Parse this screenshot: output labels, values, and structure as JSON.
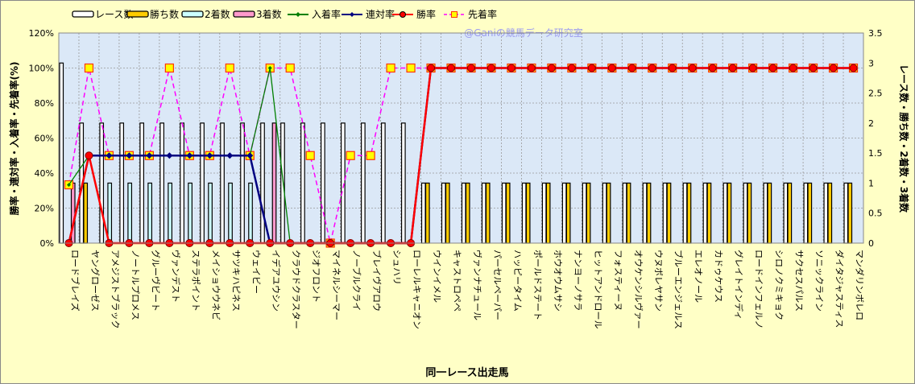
{
  "chart_data": {
    "type": "bar+line",
    "watermark": "@Ganiの競馬データ研究室",
    "xlabel": "同一レース出走馬",
    "ylabel_left": "勝率・連対率・入着率・先着率(%)",
    "ylabel_right": "レース数・勝ち数・2着数・3着数",
    "ylim_left": [
      0,
      120
    ],
    "ylim_right": [
      0,
      3.5
    ],
    "yticks_left": [
      "0%",
      "20%",
      "40%",
      "60%",
      "80%",
      "100%",
      "120%"
    ],
    "yticks_right": [
      "0",
      "0.5",
      "1",
      "1.5",
      "2",
      "2.5",
      "3",
      "3.5"
    ],
    "grid": true,
    "legend_position": "top",
    "categories": [
      "ロードブレイズ",
      "ヤングローゼス",
      "アメジストブラック",
      "ノートルプロメス",
      "グルーヴビート",
      "ヴァンデスト",
      "ステラポイント",
      "メイショウウネビ",
      "サツキハピネス",
      "ウェイビー",
      "イデアユウシン",
      "クラウドクラスター",
      "ジオフロント",
      "マイネルシーマー",
      "ノーブルクライ",
      "ブレイヴアロウ",
      "シュハリ",
      "ローレルキャニオン",
      "ウインイメル",
      "キャストロペペ",
      "ヴァンナチュール",
      "パーセルペーパー",
      "ハッピータイム",
      "ポールドステート",
      "ホウオウムサシ",
      "ナンヨーノサラ",
      "ヒットアンドロール",
      "フォスティーヌ",
      "オウケンシルヴァー",
      "ウヌボレヤサン",
      "ブルーエンジェルス",
      "エレオノール",
      "カドゥケウス",
      "グレイトインディ",
      "ロードインフェルノ",
      "シロノクミキョク",
      "サクセスパルス",
      "ソニックライン",
      "ダイタジャスティス",
      "マンダリンボレロ"
    ],
    "bar_series": [
      {
        "name": "レース数",
        "color": "#ffffff",
        "values": [
          3,
          2,
          2,
          2,
          2,
          2,
          2,
          2,
          2,
          2,
          2,
          2,
          2,
          2,
          2,
          2,
          2,
          2,
          1,
          1,
          1,
          1,
          1,
          1,
          1,
          1,
          1,
          1,
          1,
          1,
          1,
          1,
          1,
          1,
          1,
          1,
          1,
          1,
          1,
          1
        ]
      },
      {
        "name": "勝ち数",
        "color": "#ffcc00",
        "values": [
          0,
          1,
          0,
          0,
          0,
          0,
          0,
          0,
          0,
          0,
          0,
          0,
          0,
          0,
          0,
          0,
          0,
          0,
          1,
          1,
          1,
          1,
          1,
          1,
          1,
          1,
          1,
          1,
          1,
          1,
          1,
          1,
          1,
          1,
          1,
          1,
          1,
          1,
          1,
          1
        ]
      },
      {
        "name": "2着数",
        "color": "#ccffff",
        "values": [
          0,
          0,
          1,
          1,
          1,
          1,
          1,
          1,
          1,
          1,
          0,
          0,
          0,
          0,
          0,
          0,
          0,
          0,
          0,
          0,
          0,
          0,
          0,
          0,
          0,
          0,
          0,
          0,
          0,
          0,
          0,
          0,
          0,
          0,
          0,
          0,
          0,
          0,
          0,
          0
        ]
      },
      {
        "name": "3着数",
        "color": "#ff99cc",
        "values": [
          1,
          0,
          0,
          0,
          0,
          0,
          0,
          0,
          0,
          0,
          2,
          0,
          0,
          0,
          0,
          0,
          0,
          0,
          0,
          0,
          0,
          0,
          0,
          0,
          0,
          0,
          0,
          0,
          0,
          0,
          0,
          0,
          0,
          0,
          0,
          0,
          0,
          0,
          0,
          0
        ]
      }
    ],
    "line_series": [
      {
        "name": "入着率",
        "color": "#008000",
        "values": [
          33.3,
          50,
          50,
          50,
          50,
          50,
          50,
          50,
          50,
          50,
          100,
          0,
          0,
          0,
          0,
          0,
          0,
          0,
          100,
          100,
          100,
          100,
          100,
          100,
          100,
          100,
          100,
          100,
          100,
          100,
          100,
          100,
          100,
          100,
          100,
          100,
          100,
          100,
          100,
          100
        ]
      },
      {
        "name": "連対率",
        "color": "#000080",
        "values": [
          0,
          50,
          50,
          50,
          50,
          50,
          50,
          50,
          50,
          50,
          0,
          0,
          0,
          0,
          0,
          0,
          0,
          0,
          100,
          100,
          100,
          100,
          100,
          100,
          100,
          100,
          100,
          100,
          100,
          100,
          100,
          100,
          100,
          100,
          100,
          100,
          100,
          100,
          100,
          100
        ]
      },
      {
        "name": "勝率",
        "color": "#ff0000",
        "values": [
          0,
          50,
          0,
          0,
          0,
          0,
          0,
          0,
          0,
          0,
          0,
          0,
          0,
          0,
          0,
          0,
          0,
          0,
          100,
          100,
          100,
          100,
          100,
          100,
          100,
          100,
          100,
          100,
          100,
          100,
          100,
          100,
          100,
          100,
          100,
          100,
          100,
          100,
          100,
          100
        ]
      },
      {
        "name": "先着率",
        "color": "#ff00ff",
        "values": [
          33.3,
          100,
          50,
          50,
          50,
          100,
          50,
          50,
          100,
          50,
          100,
          100,
          50,
          0,
          50,
          50,
          100,
          100,
          100,
          100,
          100,
          100,
          100,
          100,
          100,
          100,
          100,
          100,
          100,
          100,
          100,
          100,
          100,
          100,
          100,
          100,
          100,
          100,
          100,
          100
        ]
      }
    ]
  }
}
